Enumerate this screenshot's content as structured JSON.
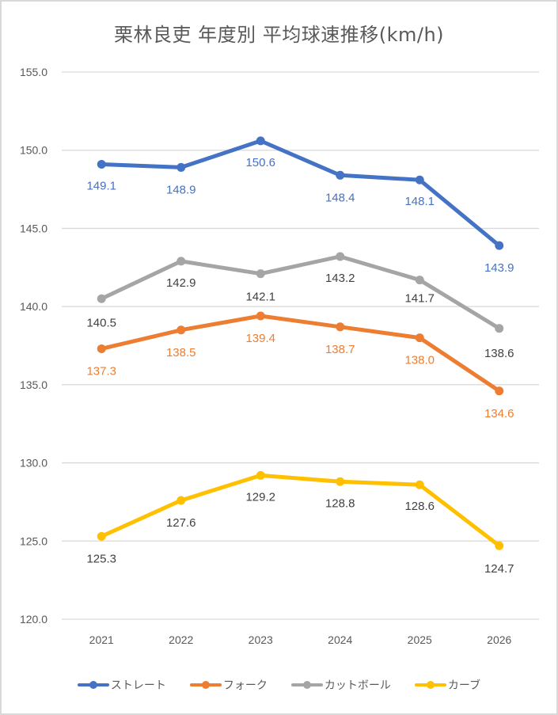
{
  "chart_data": {
    "type": "line",
    "title": "栗林良吏 年度別 平均球速推移(km/h)",
    "xlabel": "",
    "ylabel": "",
    "categories": [
      "2021",
      "2022",
      "2023",
      "2024",
      "2025",
      "2026"
    ],
    "ylim": [
      120.0,
      155.0
    ],
    "yticks": [
      "155.0",
      "150.0",
      "145.0",
      "140.0",
      "135.0",
      "130.0",
      "125.0",
      "120.0"
    ],
    "ytick_values": [
      155,
      150,
      145,
      140,
      135,
      130,
      125,
      120
    ],
    "grid": true,
    "legend_position": "bottom",
    "series": [
      {
        "name": "ストレート",
        "color": "#4472c4",
        "label_color": "#4472c4",
        "values": [
          149.1,
          148.9,
          150.6,
          148.4,
          148.1,
          143.9
        ],
        "labels": [
          "149.1",
          "148.9",
          "150.6",
          "148.4",
          "148.1",
          "143.9"
        ]
      },
      {
        "name": "フォーク",
        "color": "#ed7d31",
        "label_color": "#ed7d31",
        "values": [
          137.3,
          138.5,
          139.4,
          138.7,
          138.0,
          134.6
        ],
        "labels": [
          "137.3",
          "138.5",
          "139.4",
          "138.7",
          "138.0",
          "134.6"
        ]
      },
      {
        "name": "カットボール",
        "color": "#a5a5a5",
        "label_color": "#404040",
        "values": [
          140.5,
          142.9,
          142.1,
          143.2,
          141.7,
          138.6
        ],
        "labels": [
          "140.5",
          "142.9",
          "142.1",
          "143.2",
          "141.7",
          "138.6"
        ]
      },
      {
        "name": "カーブ",
        "color": "#ffc000",
        "label_color": "#404040",
        "values": [
          125.3,
          127.6,
          129.2,
          128.8,
          128.6,
          124.7
        ],
        "labels": [
          "125.3",
          "127.6",
          "129.2",
          "128.8",
          "128.6",
          "124.7"
        ]
      }
    ]
  }
}
